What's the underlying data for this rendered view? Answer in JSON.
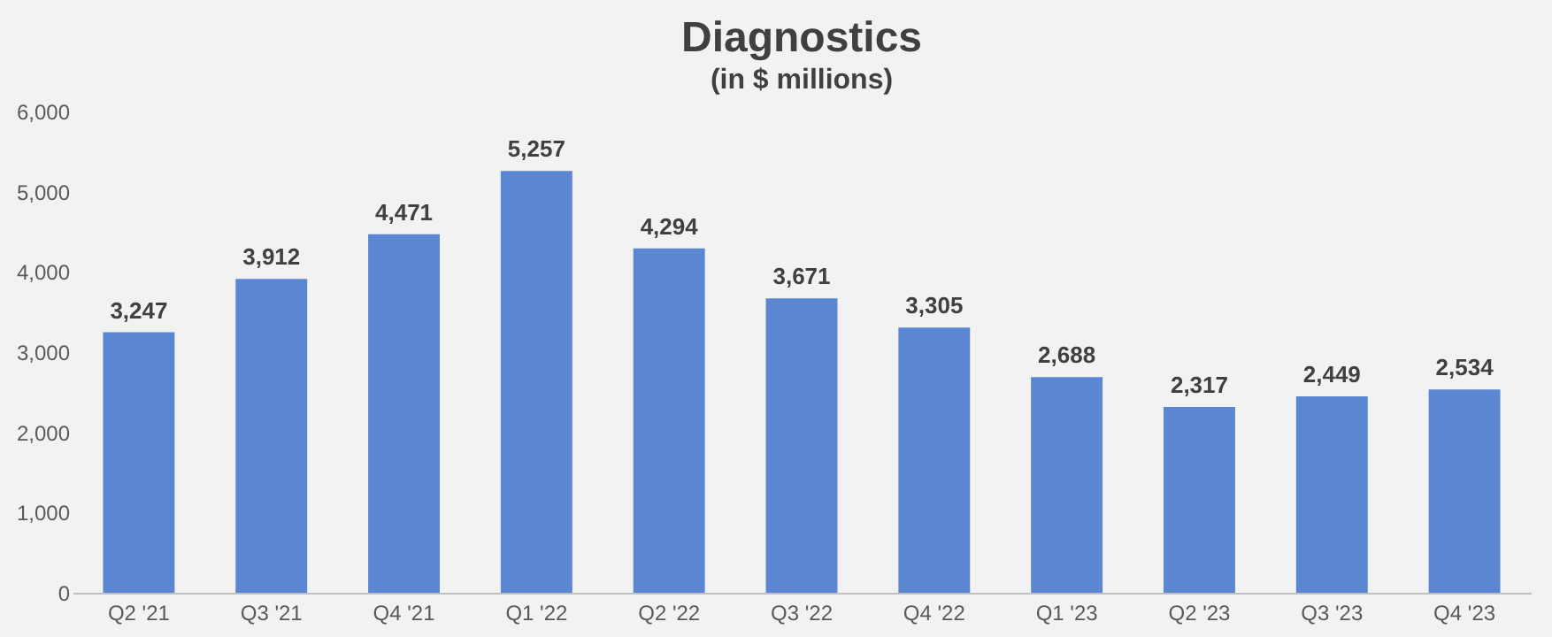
{
  "chart_data": {
    "type": "bar",
    "title": "Diagnostics",
    "subtitle": "(in $ millions)",
    "categories": [
      "Q2 '21",
      "Q3 '21",
      "Q4 '21",
      "Q1 '22",
      "Q2 '22",
      "Q3 '22",
      "Q4 '22",
      "Q1 '23",
      "Q2 '23",
      "Q3 '23",
      "Q4 '23"
    ],
    "values": [
      3247,
      3912,
      4471,
      5257,
      4294,
      3671,
      3305,
      2688,
      2317,
      2449,
      2534
    ],
    "value_labels": [
      "3,247",
      "3,912",
      "4,471",
      "5,257",
      "4,294",
      "3,671",
      "3,305",
      "2,688",
      "2,317",
      "2,449",
      "2,534"
    ],
    "color": "#5b86d1",
    "ylim": [
      0,
      6000
    ],
    "yticks": [
      0,
      {
        "value": 1000,
        "label": "1,000"
      },
      {
        "value": 2000,
        "label": "2,000"
      },
      {
        "value": 3000,
        "label": "3,000"
      },
      {
        "value": 4000,
        "label": "4,000"
      },
      {
        "value": 5000,
        "label": "5,000"
      },
      {
        "value": 6000,
        "label": "6,000"
      }
    ],
    "grid": false
  }
}
